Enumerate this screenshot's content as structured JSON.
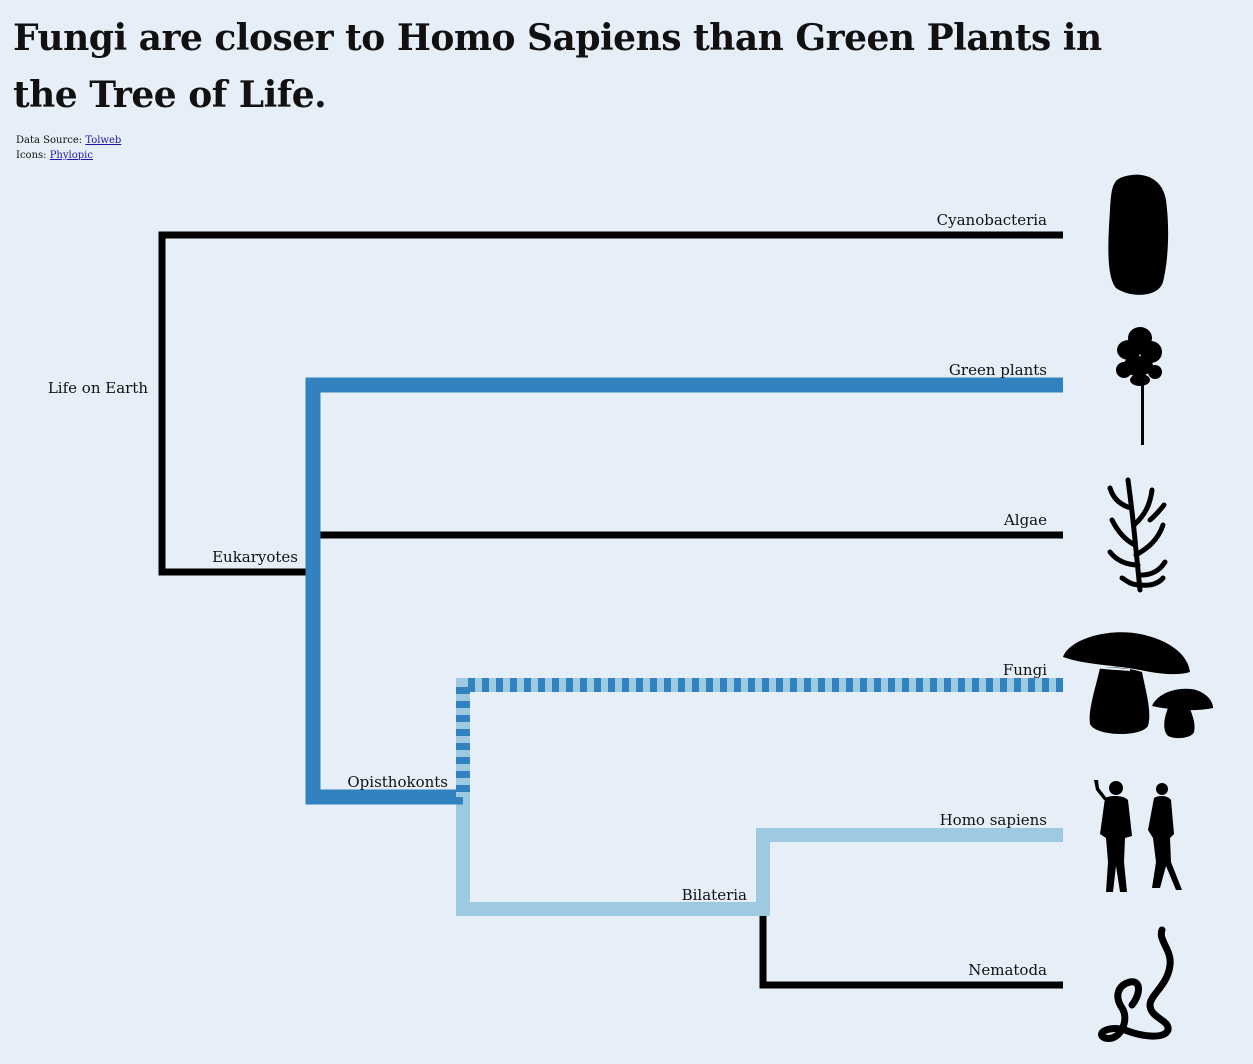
{
  "title": "Fungi are closer to Homo Sapiens than Green Plants in the Tree of Life.",
  "sources": {
    "data_prefix": "Data Source:",
    "data_link": "Tolweb",
    "icons_prefix": "Icons:",
    "icons_link": "Phylopic"
  },
  "colors": {
    "background": "#e6eff8",
    "black": "#000000",
    "dark_blue": "#3182bf",
    "light_blue": "#9ecae1"
  },
  "nodes": {
    "life": "Life on Earth",
    "eukaryotes": "Eukaryotes",
    "opisthokonts": "Opisthokonts",
    "bilateria": "Bilateria"
  },
  "leaves": [
    {
      "label": "Cyanobacteria",
      "icon": "bacterium-icon"
    },
    {
      "label": "Green plants",
      "icon": "tree-icon"
    },
    {
      "label": "Algae",
      "icon": "seaweed-icon"
    },
    {
      "label": "Fungi",
      "icon": "mushroom-icon"
    },
    {
      "label": "Homo sapiens",
      "icon": "humans-icon"
    },
    {
      "label": "Nematoda",
      "icon": "worm-icon"
    }
  ]
}
